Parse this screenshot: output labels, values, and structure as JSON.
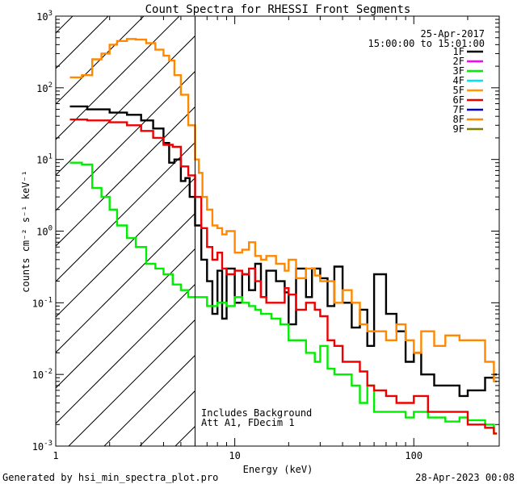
{
  "chart_data": {
    "type": "line",
    "title": "Count Spectra for RHESSI Front Segments",
    "xlabel": "Energy (keV)",
    "ylabel": "counts cm⁻² s⁻¹ keV⁻¹",
    "xscale": "log",
    "yscale": "log",
    "xlim": [
      1,
      300
    ],
    "ylim": [
      0.001,
      1000
    ],
    "x_tick_labels": [
      "1",
      "10",
      "100"
    ],
    "y_tick_labels": [
      {
        "base": "10",
        "exp": "-3",
        "value": 0.001
      },
      {
        "base": "10",
        "exp": "-2",
        "value": 0.01
      },
      {
        "base": "10",
        "exp": "-1",
        "value": 0.1
      },
      {
        "base": "10",
        "exp": "0",
        "value": 1
      },
      {
        "base": "10",
        "exp": "1",
        "value": 10
      },
      {
        "base": "10",
        "exp": "2",
        "value": 100
      },
      {
        "base": "10",
        "exp": "3",
        "value": 1000
      }
    ],
    "date": "25-Apr-2017",
    "time_range": "15:00:00 to 15:01:00",
    "threshold_energy": 6,
    "annotation_lines": [
      "Includes Background",
      "Att A1, FDecim 1"
    ],
    "legend": [
      {
        "label": "1F",
        "color": "#000000"
      },
      {
        "label": "2F",
        "color": "#ff00ff"
      },
      {
        "label": "3F",
        "color": "#00ee00"
      },
      {
        "label": "4F",
        "color": "#00e5ee"
      },
      {
        "label": "5F",
        "color": "#ff9900"
      },
      {
        "label": "6F",
        "color": "#ee0000"
      },
      {
        "label": "7F",
        "color": "#0000cc"
      },
      {
        "label": "8F",
        "color": "#ff8800"
      },
      {
        "label": "9F",
        "color": "#808000"
      }
    ],
    "series": [
      {
        "name": "1F",
        "color": "#000000",
        "x": [
          1.2,
          1.5,
          2,
          2.5,
          3,
          3.5,
          4,
          4.3,
          4.6,
          5,
          5.3,
          5.6,
          6,
          6.5,
          7,
          7.5,
          8,
          8.5,
          9,
          10,
          11,
          12,
          13,
          14,
          15,
          17,
          19,
          20,
          22,
          25,
          27,
          30,
          33,
          36,
          40,
          45,
          50,
          55,
          60,
          70,
          80,
          90,
          100,
          110,
          130,
          150,
          180,
          200,
          250,
          280
        ],
        "y": [
          55,
          50,
          45,
          42,
          35,
          27,
          17,
          9,
          10,
          5,
          5.5,
          3,
          1.2,
          0.4,
          0.2,
          0.07,
          0.28,
          0.06,
          0.3,
          0.1,
          0.25,
          0.15,
          0.35,
          0.12,
          0.28,
          0.2,
          0.14,
          0.05,
          0.3,
          0.12,
          0.3,
          0.22,
          0.09,
          0.32,
          0.1,
          0.045,
          0.08,
          0.025,
          0.25,
          0.07,
          0.04,
          0.015,
          0.02,
          0.01,
          0.007,
          0.007,
          0.005,
          0.006,
          0.009,
          0.01
        ]
      },
      {
        "name": "3F",
        "color": "#00ee00",
        "x": [
          1.2,
          1.4,
          1.6,
          1.8,
          2,
          2.2,
          2.5,
          2.8,
          3.2,
          3.6,
          4,
          4.5,
          5,
          5.5,
          6,
          7,
          8,
          9,
          10,
          11,
          12,
          13,
          14,
          16,
          18,
          20,
          22,
          25,
          28,
          30,
          33,
          36,
          40,
          45,
          50,
          55,
          60,
          70,
          80,
          90,
          100,
          120,
          150,
          180,
          200,
          250,
          280
        ],
        "y": [
          9,
          8.5,
          4,
          3,
          2,
          1.2,
          0.8,
          0.6,
          0.35,
          0.3,
          0.25,
          0.18,
          0.15,
          0.12,
          0.12,
          0.09,
          0.1,
          0.09,
          0.12,
          0.1,
          0.09,
          0.08,
          0.07,
          0.06,
          0.05,
          0.03,
          0.03,
          0.02,
          0.015,
          0.025,
          0.012,
          0.01,
          0.01,
          0.007,
          0.004,
          0.007,
          0.003,
          0.003,
          0.003,
          0.0025,
          0.003,
          0.0025,
          0.0022,
          0.0025,
          0.0023,
          0.002,
          0.0015
        ]
      },
      {
        "name": "6F",
        "color": "#ee0000",
        "x": [
          1.2,
          1.5,
          2,
          2.5,
          3,
          3.5,
          4,
          4.5,
          5,
          5.5,
          6,
          6.5,
          7,
          7.5,
          8,
          8.5,
          9,
          10,
          11,
          12,
          13,
          14,
          15,
          17,
          19,
          20,
          22,
          25,
          28,
          30,
          33,
          36,
          40,
          45,
          50,
          55,
          60,
          70,
          80,
          90,
          100,
          120,
          150,
          180,
          200,
          250,
          280
        ],
        "y": [
          36,
          35,
          33,
          30,
          25,
          20,
          16,
          15,
          8,
          6,
          3,
          1.1,
          0.6,
          0.4,
          0.5,
          0.3,
          0.25,
          0.28,
          0.25,
          0.3,
          0.2,
          0.12,
          0.1,
          0.1,
          0.16,
          0.13,
          0.08,
          0.1,
          0.08,
          0.065,
          0.03,
          0.025,
          0.015,
          0.015,
          0.011,
          0.007,
          0.006,
          0.005,
          0.004,
          0.004,
          0.005,
          0.003,
          0.003,
          0.003,
          0.002,
          0.0018,
          0.0015
        ]
      },
      {
        "name": "8F",
        "color": "#ff8800",
        "x": [
          1.2,
          1.4,
          1.6,
          1.8,
          2,
          2.2,
          2.5,
          2.8,
          3.2,
          3.6,
          4,
          4.3,
          4.6,
          5,
          5.5,
          6,
          6.3,
          6.6,
          7,
          7.5,
          8,
          8.5,
          9,
          10,
          11,
          12,
          13,
          14,
          15,
          17,
          19,
          20,
          22,
          25,
          28,
          30,
          33,
          36,
          40,
          45,
          50,
          55,
          60,
          70,
          80,
          90,
          100,
          110,
          130,
          150,
          180,
          200,
          250,
          280
        ],
        "y": [
          140,
          150,
          250,
          300,
          400,
          450,
          480,
          470,
          420,
          340,
          280,
          240,
          150,
          80,
          30,
          10,
          6.5,
          3,
          2,
          1.2,
          1.1,
          0.9,
          1,
          0.5,
          0.55,
          0.7,
          0.45,
          0.4,
          0.45,
          0.35,
          0.28,
          0.4,
          0.22,
          0.3,
          0.24,
          0.2,
          0.2,
          0.1,
          0.15,
          0.1,
          0.05,
          0.04,
          0.04,
          0.03,
          0.05,
          0.03,
          0.02,
          0.04,
          0.025,
          0.035,
          0.03,
          0.03,
          0.015,
          0.008
        ]
      }
    ]
  },
  "footer": {
    "left": "Generated by hsi_min_spectra_plot.pro",
    "right": "28-Apr-2023 00:08"
  }
}
